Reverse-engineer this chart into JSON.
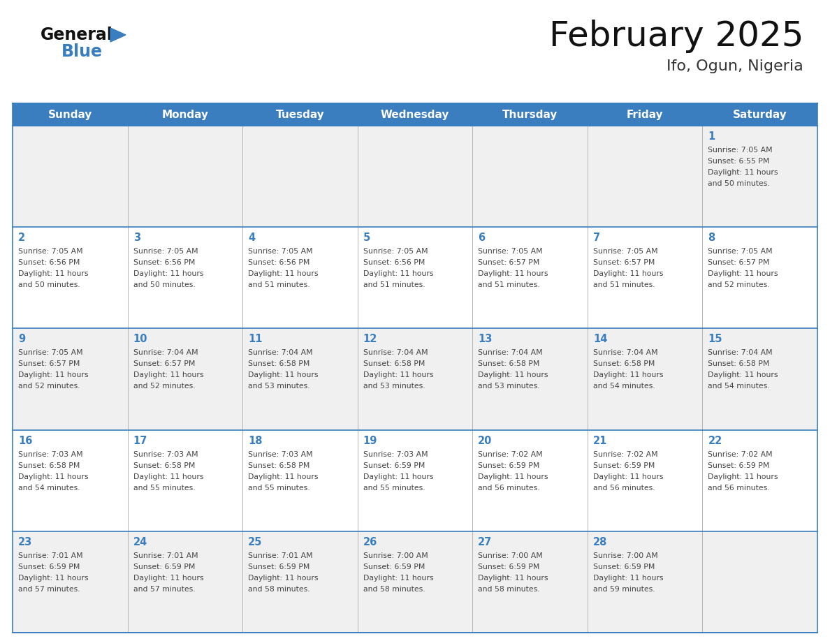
{
  "title": "February 2025",
  "subtitle": "Ifo, Ogun, Nigeria",
  "days_of_week": [
    "Sunday",
    "Monday",
    "Tuesday",
    "Wednesday",
    "Thursday",
    "Friday",
    "Saturday"
  ],
  "header_bg_color": "#3a7ebf",
  "header_text_color": "#ffffff",
  "cell_bg_color": "#f0f0f0",
  "cell_bg_alt": "#ffffff",
  "day_number_color": "#3a7ebf",
  "text_color": "#444444",
  "border_color": "#3a7ebf",
  "grid_line_color": "#aaaaaa",
  "title_color": "#111111",
  "subtitle_color": "#333333",
  "logo_general_color": "#111111",
  "logo_blue_color": "#3a7ebf",
  "logo_triangle_color": "#3a7ebf",
  "calendar_data": [
    [
      null,
      null,
      null,
      null,
      null,
      null,
      {
        "day": 1,
        "sunrise": "7:05 AM",
        "sunset": "6:55 PM",
        "daylight": "11 hours and 50 minutes."
      }
    ],
    [
      {
        "day": 2,
        "sunrise": "7:05 AM",
        "sunset": "6:56 PM",
        "daylight": "11 hours and 50 minutes."
      },
      {
        "day": 3,
        "sunrise": "7:05 AM",
        "sunset": "6:56 PM",
        "daylight": "11 hours and 50 minutes."
      },
      {
        "day": 4,
        "sunrise": "7:05 AM",
        "sunset": "6:56 PM",
        "daylight": "11 hours and 51 minutes."
      },
      {
        "day": 5,
        "sunrise": "7:05 AM",
        "sunset": "6:56 PM",
        "daylight": "11 hours and 51 minutes."
      },
      {
        "day": 6,
        "sunrise": "7:05 AM",
        "sunset": "6:57 PM",
        "daylight": "11 hours and 51 minutes."
      },
      {
        "day": 7,
        "sunrise": "7:05 AM",
        "sunset": "6:57 PM",
        "daylight": "11 hours and 51 minutes."
      },
      {
        "day": 8,
        "sunrise": "7:05 AM",
        "sunset": "6:57 PM",
        "daylight": "11 hours and 52 minutes."
      }
    ],
    [
      {
        "day": 9,
        "sunrise": "7:05 AM",
        "sunset": "6:57 PM",
        "daylight": "11 hours and 52 minutes."
      },
      {
        "day": 10,
        "sunrise": "7:04 AM",
        "sunset": "6:57 PM",
        "daylight": "11 hours and 52 minutes."
      },
      {
        "day": 11,
        "sunrise": "7:04 AM",
        "sunset": "6:58 PM",
        "daylight": "11 hours and 53 minutes."
      },
      {
        "day": 12,
        "sunrise": "7:04 AM",
        "sunset": "6:58 PM",
        "daylight": "11 hours and 53 minutes."
      },
      {
        "day": 13,
        "sunrise": "7:04 AM",
        "sunset": "6:58 PM",
        "daylight": "11 hours and 53 minutes."
      },
      {
        "day": 14,
        "sunrise": "7:04 AM",
        "sunset": "6:58 PM",
        "daylight": "11 hours and 54 minutes."
      },
      {
        "day": 15,
        "sunrise": "7:04 AM",
        "sunset": "6:58 PM",
        "daylight": "11 hours and 54 minutes."
      }
    ],
    [
      {
        "day": 16,
        "sunrise": "7:03 AM",
        "sunset": "6:58 PM",
        "daylight": "11 hours and 54 minutes."
      },
      {
        "day": 17,
        "sunrise": "7:03 AM",
        "sunset": "6:58 PM",
        "daylight": "11 hours and 55 minutes."
      },
      {
        "day": 18,
        "sunrise": "7:03 AM",
        "sunset": "6:58 PM",
        "daylight": "11 hours and 55 minutes."
      },
      {
        "day": 19,
        "sunrise": "7:03 AM",
        "sunset": "6:59 PM",
        "daylight": "11 hours and 55 minutes."
      },
      {
        "day": 20,
        "sunrise": "7:02 AM",
        "sunset": "6:59 PM",
        "daylight": "11 hours and 56 minutes."
      },
      {
        "day": 21,
        "sunrise": "7:02 AM",
        "sunset": "6:59 PM",
        "daylight": "11 hours and 56 minutes."
      },
      {
        "day": 22,
        "sunrise": "7:02 AM",
        "sunset": "6:59 PM",
        "daylight": "11 hours and 56 minutes."
      }
    ],
    [
      {
        "day": 23,
        "sunrise": "7:01 AM",
        "sunset": "6:59 PM",
        "daylight": "11 hours and 57 minutes."
      },
      {
        "day": 24,
        "sunrise": "7:01 AM",
        "sunset": "6:59 PM",
        "daylight": "11 hours and 57 minutes."
      },
      {
        "day": 25,
        "sunrise": "7:01 AM",
        "sunset": "6:59 PM",
        "daylight": "11 hours and 58 minutes."
      },
      {
        "day": 26,
        "sunrise": "7:00 AM",
        "sunset": "6:59 PM",
        "daylight": "11 hours and 58 minutes."
      },
      {
        "day": 27,
        "sunrise": "7:00 AM",
        "sunset": "6:59 PM",
        "daylight": "11 hours and 58 minutes."
      },
      {
        "day": 28,
        "sunrise": "7:00 AM",
        "sunset": "6:59 PM",
        "daylight": "11 hours and 59 minutes."
      },
      null
    ]
  ]
}
